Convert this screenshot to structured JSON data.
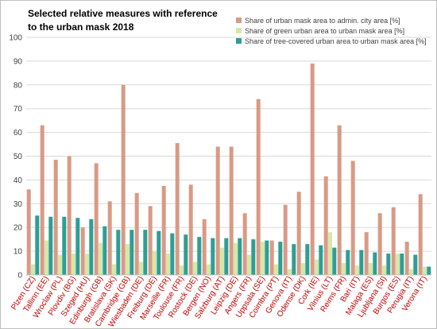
{
  "chart_data": {
    "type": "bar",
    "title_lines": [
      "Selected relative measures with reference",
      "to the urban mask 2018"
    ],
    "xlabel": "",
    "ylabel": "",
    "ylim": [
      0,
      100
    ],
    "yticks": [
      0,
      10,
      20,
      30,
      40,
      50,
      60,
      70,
      80,
      90,
      100
    ],
    "grid": true,
    "legend_position": "top-right",
    "categories": [
      "Plzen (CZ)",
      "Tallinn (EE)",
      "Wroclaw (PL)",
      "Plovdiv (BG)",
      "Szeged (HU)",
      "Edinburgh (GB)",
      "Bratislava (SK)",
      "Cambridge (GB)",
      "Wiesbaden (DE)",
      "Freiburg (DE)",
      "Marseille (FR)",
      "Toulouse (FR)",
      "Rostock (DE)",
      "Bergen (NO)",
      "Salzburg (AT)",
      "Leipzig (DE)",
      "Angers (FR)",
      "Uppsala (SE)",
      "Coimbra (PT)",
      "Genova (IT)",
      "Odense (DK)",
      "Cork (IE)",
      "Vilnius (LT)",
      "Reims (FR)",
      "Bari (IT)",
      "Malaga (ES)",
      "Ljubljana (SI)",
      "Burgos (ES)",
      "Perugia (IT)",
      "Verona (IT)"
    ],
    "series": [
      {
        "name": "Share of urban mask area to admin. city area [%]",
        "color": "#d99a85",
        "values": [
          36,
          63,
          48.5,
          50,
          20,
          47,
          31,
          80,
          34.5,
          29,
          37.5,
          55.5,
          38,
          23.5,
          54,
          54,
          26,
          74,
          14.5,
          29.5,
          35,
          89,
          41.5,
          63,
          48,
          18,
          26,
          28.5,
          14,
          34
        ]
      },
      {
        "name": "Share of green urban area to urban mask area [%]",
        "color": "#d6e7a8",
        "values": [
          4.5,
          14.5,
          8.5,
          9,
          9,
          13.5,
          4.5,
          13,
          5.5,
          10,
          9,
          4,
          5.5,
          4.5,
          11.5,
          13.5,
          8.5,
          14,
          4.5,
          2.5,
          5,
          6.5,
          18,
          5,
          4,
          5,
          4,
          9,
          2.5,
          3.5
        ]
      },
      {
        "name": "Share of tree-covered urban area to urban mask area [%]",
        "color": "#2e9e95",
        "values": [
          25,
          24.5,
          24.5,
          24,
          23.5,
          20.5,
          19,
          19,
          19,
          18.5,
          17.5,
          17,
          16,
          15.5,
          15.5,
          15.5,
          15,
          14.5,
          14,
          13,
          13,
          12.5,
          11.5,
          10.5,
          10.5,
          9.5,
          9,
          9,
          8.5,
          3.5
        ]
      }
    ]
  }
}
